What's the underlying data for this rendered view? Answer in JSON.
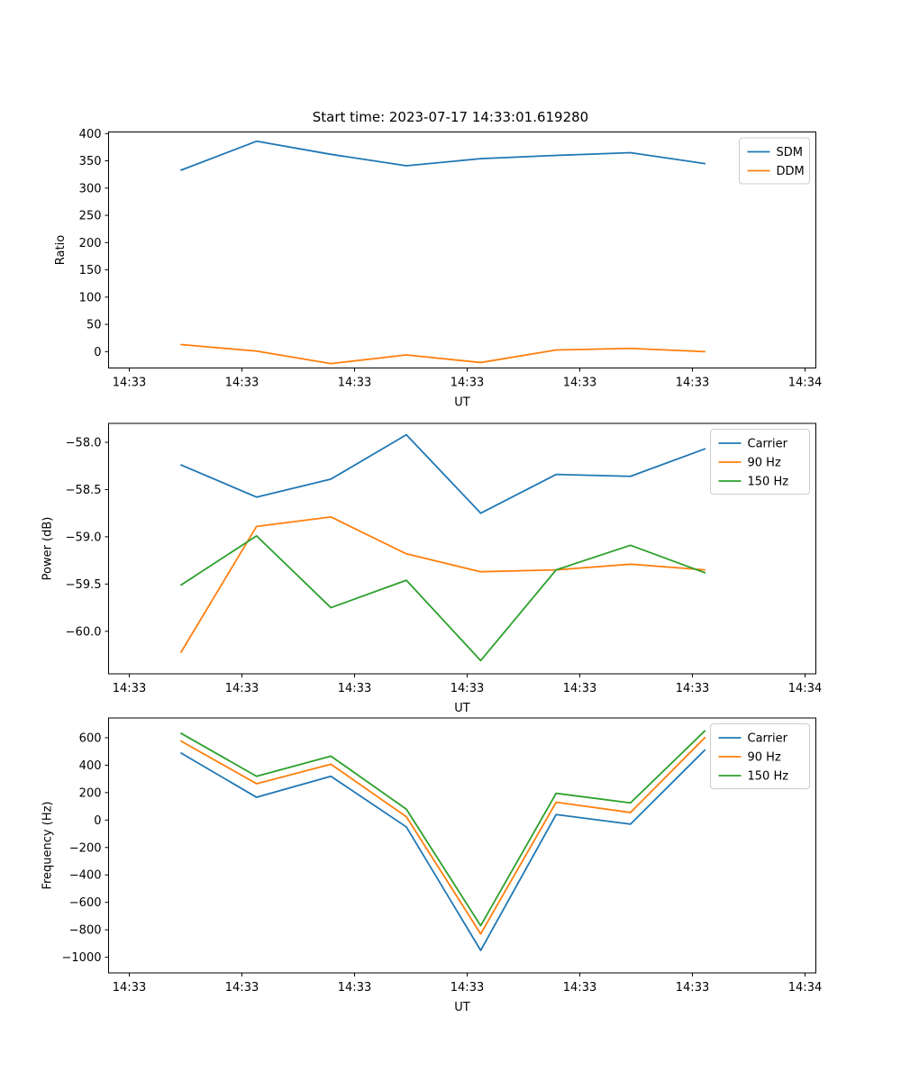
{
  "figure": {
    "title": "Start time: 2023-07-17 14:33:01.619280",
    "background": "#ffffff",
    "text_color": "#000000",
    "axis_color": "#000000"
  },
  "chart_data": [
    {
      "type": "line",
      "name": "ratio",
      "title": "Start time: 2023-07-17 14:33:01.619280",
      "xlabel": "UT",
      "ylabel": "Ratio",
      "grid": false,
      "legend_position": "upper right",
      "x_seconds_after_14_33": [
        4.6,
        11.3,
        17.9,
        24.6,
        31.2,
        37.9,
        44.5,
        51.1
      ],
      "xlim": [
        -1.84,
        60.96
      ],
      "ylim": [
        -30,
        403
      ],
      "xticks": [
        0,
        10,
        20,
        30,
        40,
        50,
        60
      ],
      "xtick_labels": [
        "14:33",
        "14:33",
        "14:33",
        "14:33",
        "14:33",
        "14:33",
        "14:34"
      ],
      "yticks": [
        0,
        50,
        100,
        150,
        200,
        250,
        300,
        350,
        400
      ],
      "ytick_labels": [
        "0",
        "50",
        "100",
        "150",
        "200",
        "250",
        "300",
        "350",
        "400"
      ],
      "series": [
        {
          "name": "SDM",
          "color": "#1f77b4",
          "values": [
            333,
            386,
            362,
            341,
            354,
            360,
            365,
            345
          ]
        },
        {
          "name": "DDM",
          "color": "#ff7f0e",
          "values": [
            13,
            1,
            -22,
            -6,
            -20,
            3,
            6,
            0
          ]
        }
      ]
    },
    {
      "type": "line",
      "name": "power",
      "xlabel": "UT",
      "ylabel": "Power (dB)",
      "grid": false,
      "legend_position": "upper right",
      "x_seconds_after_14_33": [
        4.6,
        11.3,
        17.9,
        24.6,
        31.2,
        37.9,
        44.5,
        51.1
      ],
      "xlim": [
        -1.84,
        60.96
      ],
      "ylim": [
        -60.45,
        -57.8
      ],
      "xticks": [
        0,
        10,
        20,
        30,
        40,
        50,
        60
      ],
      "xtick_labels": [
        "14:33",
        "14:33",
        "14:33",
        "14:33",
        "14:33",
        "14:33",
        "14:34"
      ],
      "yticks": [
        -58.0,
        -58.5,
        -59.0,
        -59.5,
        -60.0
      ],
      "ytick_labels": [
        "−58.0",
        "−58.5",
        "−59.0",
        "−59.5",
        "−60.0"
      ],
      "series": [
        {
          "name": "Carrier",
          "color": "#1f77b4",
          "values": [
            -58.24,
            -58.58,
            -58.39,
            -57.92,
            -58.75,
            -58.34,
            -58.36,
            -58.07
          ]
        },
        {
          "name": "90 Hz",
          "color": "#ff7f0e",
          "values": [
            -60.22,
            -58.89,
            -58.79,
            -59.18,
            -59.37,
            -59.35,
            -59.29,
            -59.35
          ]
        },
        {
          "name": "150 Hz",
          "color": "#2ca02c",
          "values": [
            -59.51,
            -58.99,
            -59.75,
            -59.46,
            -60.31,
            -59.35,
            -59.09,
            -59.38
          ]
        }
      ]
    },
    {
      "type": "line",
      "name": "frequency",
      "xlabel": "UT",
      "ylabel": "Frequency (Hz)",
      "grid": false,
      "legend_position": "upper right",
      "x_seconds_after_14_33": [
        4.6,
        11.3,
        17.9,
        24.6,
        31.2,
        37.9,
        44.5,
        51.1
      ],
      "xlim": [
        -1.84,
        60.96
      ],
      "ylim": [
        -1114,
        744
      ],
      "xticks": [
        0,
        10,
        20,
        30,
        40,
        50,
        60
      ],
      "xtick_labels": [
        "14:33",
        "14:33",
        "14:33",
        "14:33",
        "14:33",
        "14:33",
        "14:34"
      ],
      "yticks": [
        600,
        400,
        200,
        0,
        -200,
        -400,
        -600,
        -800,
        -1000
      ],
      "ytick_labels": [
        "600",
        "400",
        "200",
        "0",
        "−200",
        "−400",
        "−600",
        "−800",
        "−1000"
      ],
      "series": [
        {
          "name": "Carrier",
          "color": "#1f77b4",
          "values": [
            488,
            166,
            319,
            -50,
            -950,
            40,
            -30,
            510
          ]
        },
        {
          "name": "90 Hz",
          "color": "#ff7f0e",
          "values": [
            575,
            265,
            407,
            24,
            -830,
            130,
            55,
            600
          ]
        },
        {
          "name": "150 Hz",
          "color": "#2ca02c",
          "values": [
            632,
            319,
            466,
            79,
            -770,
            195,
            125,
            650
          ]
        }
      ]
    }
  ]
}
